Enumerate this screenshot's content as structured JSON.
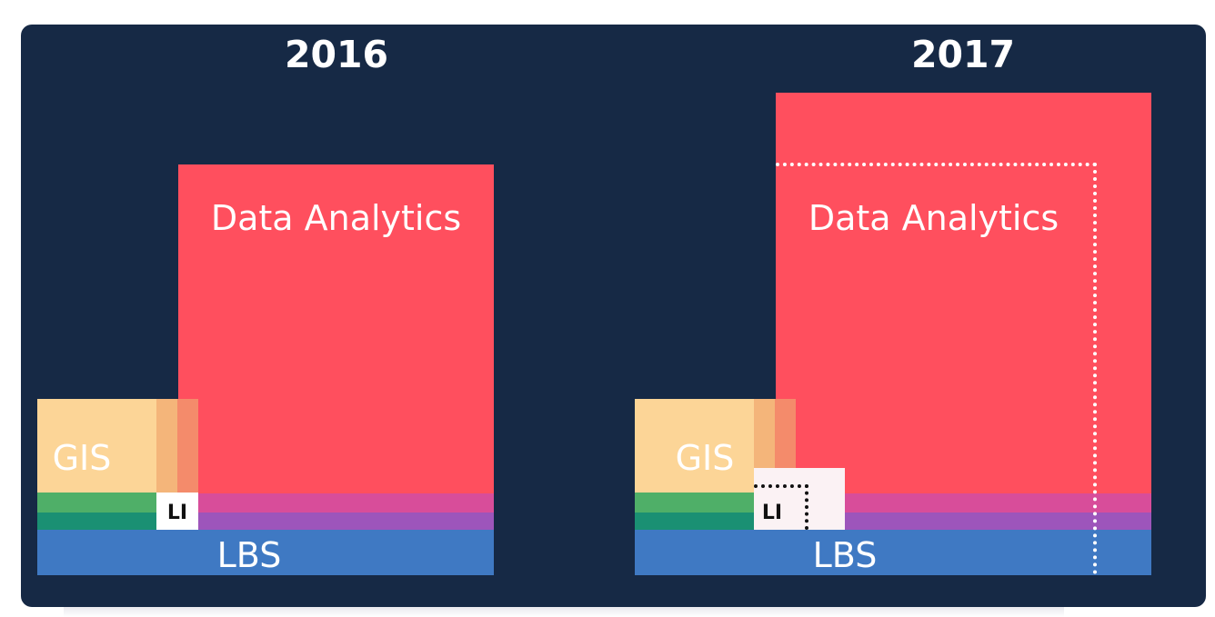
{
  "years": {
    "left": "2016",
    "right": "2017"
  },
  "labels": {
    "data_analytics": "Data Analytics",
    "gis": "GIS",
    "li": "LI",
    "lbs": "LBS"
  },
  "colors": {
    "background": "#162945",
    "data_analytics": "#ff4f5e",
    "gis": "#fcd597",
    "gis_overlap_1": "#f4b57a",
    "gis_overlap_2": "#f48b6b",
    "green_top": "#4faf68",
    "green_bottom": "#1a9073",
    "pink_band": "#d84d9a",
    "purple_band": "#9d55bb",
    "lbs": "#3f79c3",
    "li_box": "#ffffff",
    "dotted_outline": "#ffffff"
  }
}
